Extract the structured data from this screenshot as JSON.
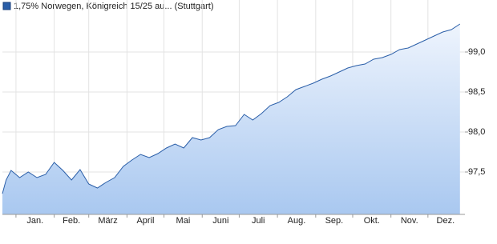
{
  "chart_data": {
    "type": "line",
    "title": "1,75% Norwegen, Königreich 15/25 au... (Stuttgart)",
    "x": [
      0,
      3,
      7,
      14,
      21,
      28,
      35,
      42,
      49,
      56,
      63,
      70,
      77,
      84,
      91,
      98,
      105,
      112,
      119,
      126,
      133,
      140,
      147,
      154,
      161,
      168,
      175,
      182,
      189,
      196,
      203,
      210,
      217,
      224,
      231,
      238,
      245,
      252,
      259,
      266,
      273,
      280,
      287,
      294,
      301,
      308,
      315,
      322,
      329,
      336,
      343,
      350,
      357,
      364,
      371
    ],
    "series": [
      {
        "name": "1,75% Norwegen, Königreich 15/25 au... (Stuttgart)",
        "color": "#2a5ea8",
        "values": [
          97.23,
          97.4,
          97.52,
          97.43,
          97.5,
          97.43,
          97.47,
          97.62,
          97.52,
          97.4,
          97.53,
          97.35,
          97.3,
          97.37,
          97.43,
          97.57,
          97.65,
          97.72,
          97.68,
          97.73,
          97.8,
          97.85,
          97.8,
          97.93,
          97.9,
          97.93,
          98.03,
          98.07,
          98.08,
          98.22,
          98.15,
          98.23,
          98.33,
          98.37,
          98.44,
          98.53,
          98.57,
          98.61,
          98.66,
          98.7,
          98.75,
          98.8,
          98.83,
          98.85,
          98.91,
          98.93,
          98.97,
          99.03,
          99.05,
          99.1,
          99.15,
          99.2,
          99.25,
          99.28,
          99.35
        ]
      }
    ],
    "xlim": [
      0,
      375
    ],
    "xticks": [
      {
        "value": 11,
        "label": "Jan."
      },
      {
        "value": 42,
        "label": "Feb."
      },
      {
        "value": 70,
        "label": "März"
      },
      {
        "value": 101,
        "label": "April"
      },
      {
        "value": 131,
        "label": "Mai"
      },
      {
        "value": 162,
        "label": "Juni"
      },
      {
        "value": 192,
        "label": "Juli"
      },
      {
        "value": 223,
        "label": "Aug."
      },
      {
        "value": 254,
        "label": "Sep."
      },
      {
        "value": 284,
        "label": "Okt."
      },
      {
        "value": 315,
        "label": "Nov."
      },
      {
        "value": 345,
        "label": "Dez."
      }
    ],
    "ylim": [
      96.97,
      99.47
    ],
    "yticks": [
      {
        "value": 97.5,
        "label": "97,5"
      },
      {
        "value": 98.0,
        "label": "98,0"
      },
      {
        "value": 98.5,
        "label": "98,5"
      },
      {
        "value": 99.0,
        "label": "99,0"
      }
    ],
    "grid": true
  }
}
